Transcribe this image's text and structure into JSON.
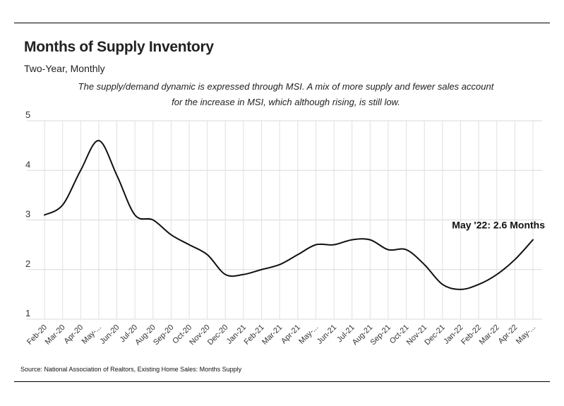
{
  "chart_data": {
    "type": "line",
    "title": "Months of Supply Inventory",
    "subtitle": "Two-Year, Monthly",
    "description_lines": [
      "The supply/demand dynamic is expressed through MSI. A mix of more supply and fewer sales account",
      "for the increase in MSI, which although rising, is still low."
    ],
    "categories": [
      "Feb-20",
      "Mar-20",
      "Apr-20",
      "May-...",
      "Jun-20",
      "Jul-20",
      "Aug-20",
      "Sep-20",
      "Oct-20",
      "Nov-20",
      "Dec-20",
      "Jan-21",
      "Feb-21",
      "Mar-21",
      "Apr-21",
      "May-...",
      "Jun-21",
      "Jul-21",
      "Aug-21",
      "Sep-21",
      "Oct-21",
      "Nov-21",
      "Dec-21",
      "Jan-22",
      "Feb-22",
      "Mar-22",
      "Apr-22",
      "May-..."
    ],
    "series": [
      {
        "name": "Months Supply",
        "values": [
          3.1,
          3.3,
          4.0,
          4.6,
          3.9,
          3.1,
          3.0,
          2.7,
          2.5,
          2.3,
          1.9,
          1.9,
          2.0,
          2.1,
          2.3,
          2.5,
          2.5,
          2.6,
          2.6,
          2.4,
          2.4,
          2.1,
          1.7,
          1.6,
          1.7,
          1.9,
          2.2,
          2.6
        ],
        "color": "#111111"
      }
    ],
    "xlabel": "",
    "ylabel": "",
    "ylim": [
      1,
      5
    ],
    "yticks": [
      "1",
      "2",
      "3",
      "4",
      "5"
    ],
    "grid": true,
    "annotation": {
      "text": "May '22: 2.6 Months",
      "index": 27
    },
    "source": "Source:  National Association of Realtors, Existing Home Sales: Months Supply"
  }
}
